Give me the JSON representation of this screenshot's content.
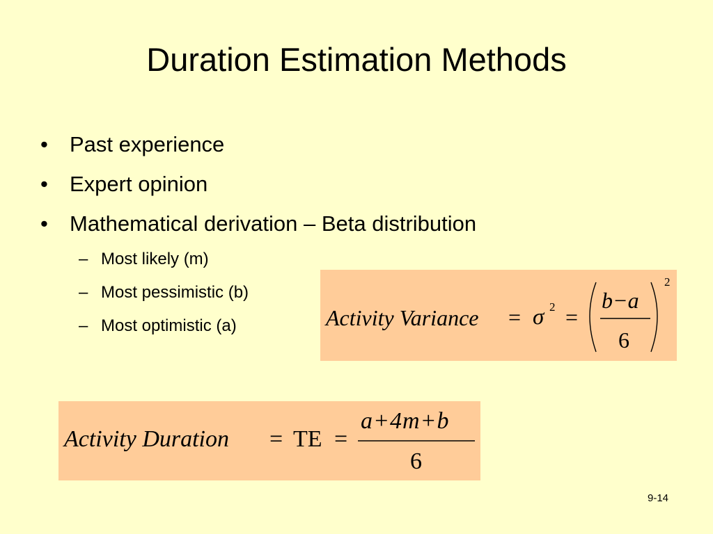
{
  "slide": {
    "title": "Duration Estimation Methods",
    "bullets": [
      "Past experience",
      "Expert opinion",
      "Mathematical derivation – Beta distribution"
    ],
    "sub_bullets": [
      "Most likely (m)",
      "Most pessimistic (b)",
      "Most optimistic (a)"
    ],
    "bullet_symbol": "•",
    "sub_bullet_symbol": "–",
    "slide_number": "9-14"
  },
  "formulas": {
    "variance": {
      "label": "Activity Variance",
      "eq1": "=",
      "sigma": "σ",
      "sigma_exp": "2",
      "eq2": "=",
      "numerator": "b−a",
      "denominator": "6",
      "exponent": "2"
    },
    "duration": {
      "label": "Activity Duration",
      "eq1": "=",
      "te": "TE",
      "eq2": "=",
      "numerator": "a+4m+b",
      "denominator": "6"
    }
  },
  "colors": {
    "background": "#ffffcc",
    "formula_box": "#ffcc99"
  }
}
